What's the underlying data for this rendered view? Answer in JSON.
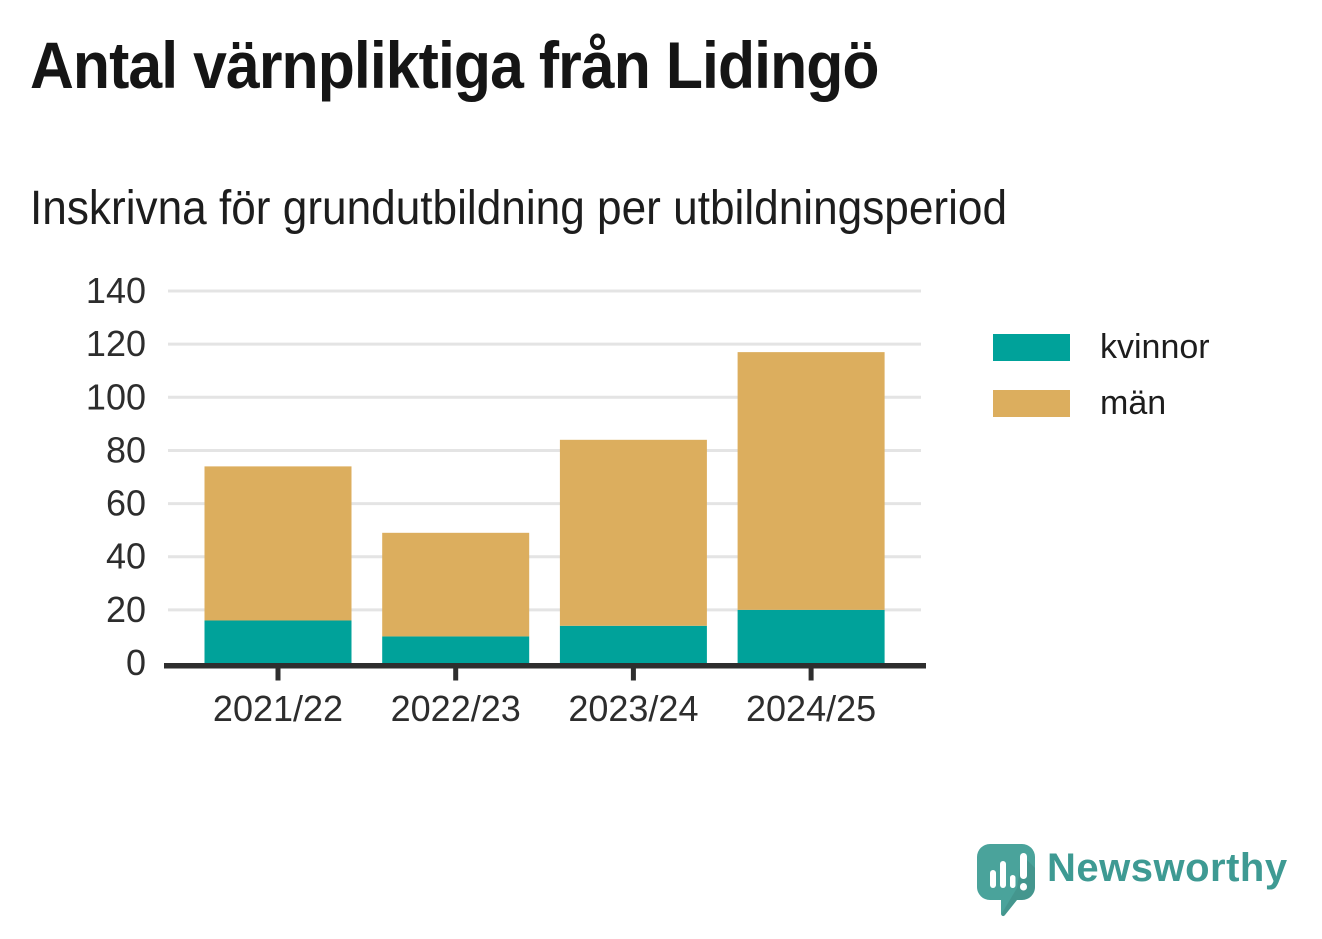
{
  "header": {
    "title": "Antal värnpliktiga från Lidingö",
    "subtitle": "Inskrivna för grundutbildning per utbildningsperiod"
  },
  "chart_data": {
    "type": "bar",
    "stacked": true,
    "title": "Antal värnpliktiga från Lidingö",
    "subtitle": "Inskrivna för grundutbildning per utbildningsperiod",
    "categories": [
      "2021/22",
      "2022/23",
      "2023/24",
      "2024/25"
    ],
    "series": [
      {
        "name": "kvinnor",
        "color": "#00a29a",
        "values": [
          16,
          10,
          14,
          20
        ]
      },
      {
        "name": "män",
        "color": "#dcae5e",
        "values": [
          58,
          39,
          70,
          97
        ]
      }
    ],
    "totals": [
      74,
      49,
      84,
      117
    ],
    "xlabel": "",
    "ylabel": "",
    "ylim": [
      0,
      140
    ],
    "yticks": [
      0,
      20,
      40,
      60,
      80,
      100,
      120,
      140
    ],
    "grid": true,
    "gridline_color": "#e4e4e4",
    "axis_color": "#2e2e2e",
    "legend_position": "right"
  },
  "legend": {
    "items": [
      {
        "label": "kvinnor",
        "color": "#00a29a"
      },
      {
        "label": "män",
        "color": "#dcae5e"
      }
    ]
  },
  "footer": {
    "brand": "Newsworthy",
    "brand_color": "#3e9a93",
    "logo_icon": "newsworthy-speech-bubble-bar-chart-icon",
    "logo_color": "#4aa39b"
  }
}
